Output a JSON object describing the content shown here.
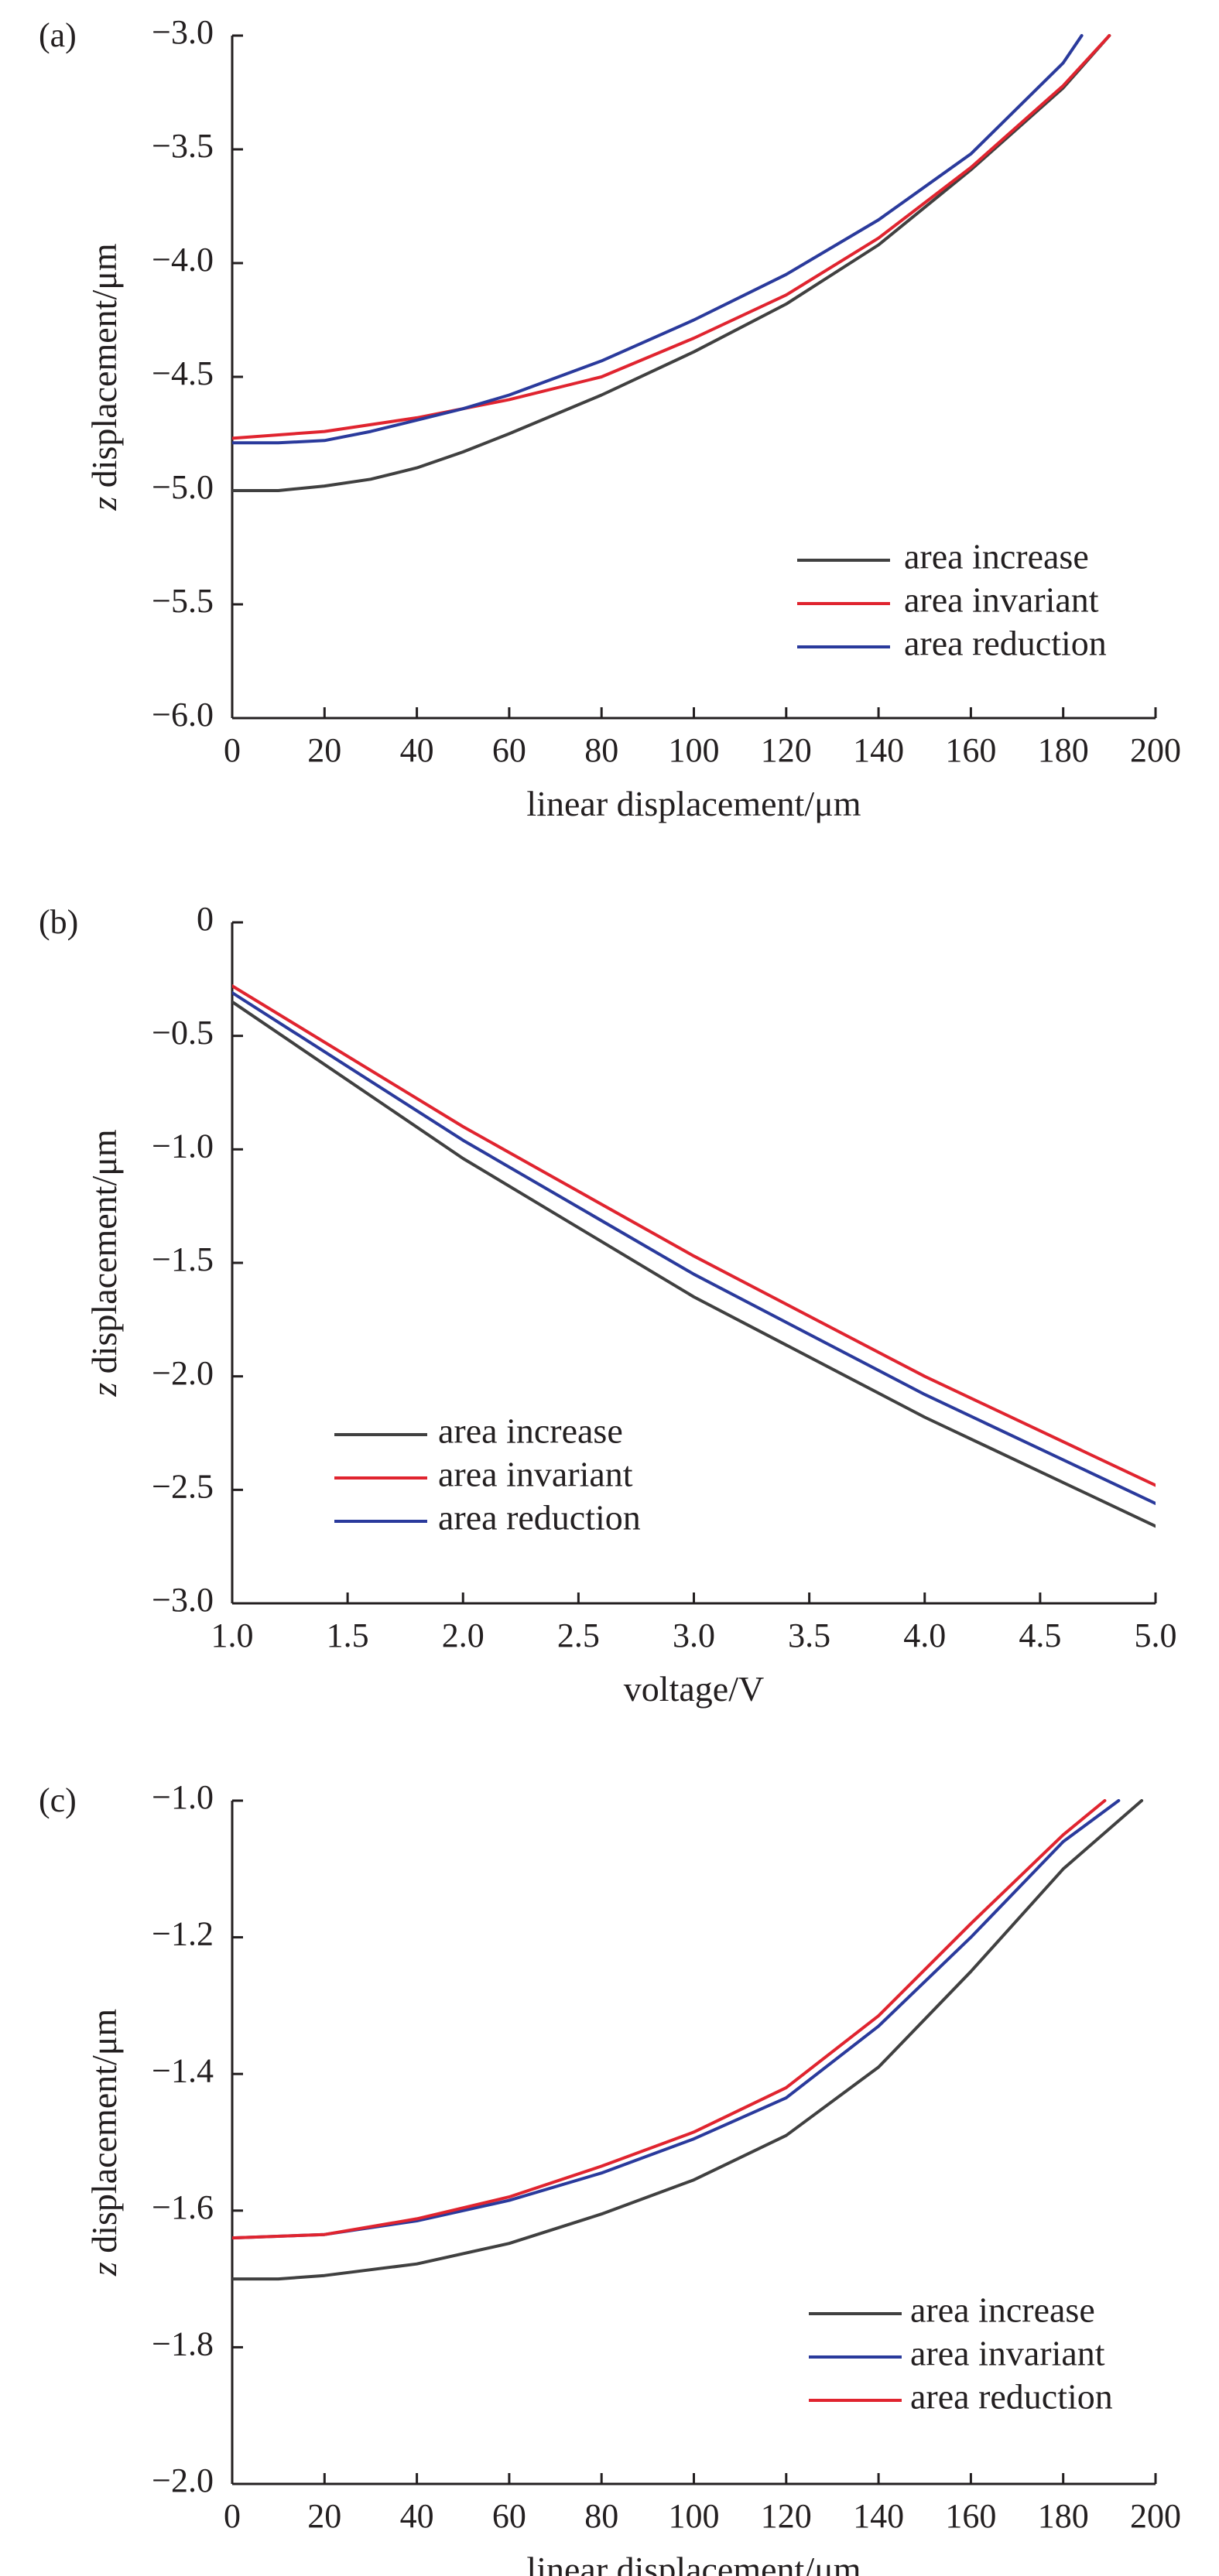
{
  "colors": {
    "black": "#404040",
    "red": "#e0242f",
    "blue": "#2a3a9c",
    "axis": "#231f20"
  },
  "chart_data": [
    {
      "panel_label": "(a)",
      "type": "line",
      "xlabel": "linear displacement/μm",
      "ylabel_italic": "z",
      "ylabel_rest": " displacement/μm",
      "xlim": [
        0,
        200
      ],
      "ylim": [
        -6.0,
        -3.0
      ],
      "xticks": [
        0,
        20,
        40,
        60,
        80,
        100,
        120,
        140,
        160,
        180,
        200
      ],
      "yticks": [
        -6.0,
        -5.5,
        -5.0,
        -4.5,
        -4.0,
        -3.5,
        -3.0
      ],
      "xtick_labels": [
        "0",
        "20",
        "40",
        "60",
        "80",
        "100",
        "120",
        "140",
        "160",
        "180",
        "200"
      ],
      "ytick_labels": [
        "−6.0",
        "−5.5",
        "−5.0",
        "−4.5",
        "−4.0",
        "−3.5",
        "−3.0"
      ],
      "legend_position": "bottom-right",
      "series": [
        {
          "name": "area increase",
          "color": "#404040",
          "points": [
            [
              0,
              -5.0
            ],
            [
              10,
              -5.0
            ],
            [
              20,
              -4.98
            ],
            [
              30,
              -4.95
            ],
            [
              40,
              -4.9
            ],
            [
              50,
              -4.83
            ],
            [
              60,
              -4.75
            ],
            [
              80,
              -4.58
            ],
            [
              100,
              -4.39
            ],
            [
              120,
              -4.18
            ],
            [
              140,
              -3.92
            ],
            [
              160,
              -3.59
            ],
            [
              180,
              -3.23
            ],
            [
              190,
              -3.0
            ]
          ]
        },
        {
          "name": "area invariant",
          "color": "#e0242f",
          "points": [
            [
              0,
              -4.77
            ],
            [
              20,
              -4.74
            ],
            [
              40,
              -4.68
            ],
            [
              60,
              -4.6
            ],
            [
              80,
              -4.5
            ],
            [
              100,
              -4.33
            ],
            [
              120,
              -4.14
            ],
            [
              140,
              -3.89
            ],
            [
              160,
              -3.58
            ],
            [
              180,
              -3.22
            ],
            [
              190,
              -3.0
            ]
          ]
        },
        {
          "name": "area reduction",
          "color": "#2a3a9c",
          "points": [
            [
              0,
              -4.79
            ],
            [
              10,
              -4.79
            ],
            [
              20,
              -4.78
            ],
            [
              30,
              -4.74
            ],
            [
              40,
              -4.69
            ],
            [
              50,
              -4.64
            ],
            [
              60,
              -4.58
            ],
            [
              80,
              -4.43
            ],
            [
              100,
              -4.25
            ],
            [
              120,
              -4.05
            ],
            [
              140,
              -3.81
            ],
            [
              160,
              -3.52
            ],
            [
              180,
              -3.12
            ],
            [
              184,
              -3.0
            ]
          ]
        }
      ]
    },
    {
      "panel_label": "(b)",
      "type": "line",
      "xlabel": "voltage/V",
      "ylabel_italic": "z",
      "ylabel_rest": " displacement/μm",
      "xlim": [
        1.0,
        5.0
      ],
      "ylim": [
        -3.0,
        0
      ],
      "xticks": [
        1.0,
        1.5,
        2.0,
        2.5,
        3.0,
        3.5,
        4.0,
        4.5,
        5.0
      ],
      "yticks": [
        -3.0,
        -2.5,
        -2.0,
        -1.5,
        -1.0,
        -0.5,
        0
      ],
      "xtick_labels": [
        "1.0",
        "1.5",
        "2.0",
        "2.5",
        "3.0",
        "3.5",
        "4.0",
        "4.5",
        "5.0"
      ],
      "ytick_labels": [
        "−3.0",
        "−2.5",
        "−2.0",
        "−1.5",
        "−1.0",
        "−0.5",
        "0"
      ],
      "legend_position": "bottom-left",
      "series": [
        {
          "name": "area increase",
          "color": "#404040",
          "points": [
            [
              1.0,
              -0.35
            ],
            [
              2.0,
              -1.04
            ],
            [
              3.0,
              -1.65
            ],
            [
              4.0,
              -2.18
            ],
            [
              5.0,
              -2.66
            ]
          ]
        },
        {
          "name": "area invariant",
          "color": "#e0242f",
          "points": [
            [
              1.0,
              -0.28
            ],
            [
              2.0,
              -0.9
            ],
            [
              3.0,
              -1.47
            ],
            [
              4.0,
              -2.0
            ],
            [
              5.0,
              -2.48
            ]
          ]
        },
        {
          "name": "area reduction",
          "color": "#2a3a9c",
          "points": [
            [
              1.0,
              -0.31
            ],
            [
              2.0,
              -0.96
            ],
            [
              3.0,
              -1.55
            ],
            [
              4.0,
              -2.08
            ],
            [
              5.0,
              -2.56
            ]
          ]
        }
      ]
    },
    {
      "panel_label": "(c)",
      "type": "line",
      "xlabel": "linear displacement/μm",
      "ylabel_italic": "z",
      "ylabel_rest": " displacement/μm",
      "xlim": [
        0,
        200
      ],
      "ylim": [
        -2.0,
        -1.0
      ],
      "xticks": [
        0,
        20,
        40,
        60,
        80,
        100,
        120,
        140,
        160,
        180,
        200
      ],
      "yticks": [
        -2.0,
        -1.8,
        -1.6,
        -1.4,
        -1.2,
        -1.0
      ],
      "xtick_labels": [
        "0",
        "20",
        "40",
        "60",
        "80",
        "100",
        "120",
        "140",
        "160",
        "180",
        "200"
      ],
      "ytick_labels": [
        "−2.0",
        "−1.8",
        "−1.6",
        "−1.4",
        "−1.2",
        "−1.0"
      ],
      "legend_position": "bottom-right",
      "series": [
        {
          "name": "area increase",
          "color": "#404040",
          "points": [
            [
              0,
              -1.7
            ],
            [
              10,
              -1.7
            ],
            [
              20,
              -1.695
            ],
            [
              40,
              -1.678
            ],
            [
              60,
              -1.648
            ],
            [
              80,
              -1.605
            ],
            [
              100,
              -1.555
            ],
            [
              120,
              -1.49
            ],
            [
              140,
              -1.39
            ],
            [
              160,
              -1.25
            ],
            [
              180,
              -1.1
            ],
            [
              197,
              -1.0
            ]
          ]
        },
        {
          "name": "area invariant",
          "color": "#2a3a9c",
          "points": [
            [
              0,
              -1.64
            ],
            [
              20,
              -1.635
            ],
            [
              40,
              -1.615
            ],
            [
              60,
              -1.585
            ],
            [
              80,
              -1.545
            ],
            [
              100,
              -1.495
            ],
            [
              120,
              -1.435
            ],
            [
              140,
              -1.33
            ],
            [
              160,
              -1.2
            ],
            [
              180,
              -1.06
            ],
            [
              192,
              -1.0
            ]
          ]
        },
        {
          "name": "area reduction",
          "color": "#e0242f",
          "points": [
            [
              0,
              -1.64
            ],
            [
              20,
              -1.635
            ],
            [
              40,
              -1.612
            ],
            [
              60,
              -1.58
            ],
            [
              80,
              -1.535
            ],
            [
              100,
              -1.485
            ],
            [
              120,
              -1.42
            ],
            [
              140,
              -1.315
            ],
            [
              160,
              -1.18
            ],
            [
              180,
              -1.05
            ],
            [
              189,
              -1.0
            ]
          ]
        }
      ]
    }
  ]
}
